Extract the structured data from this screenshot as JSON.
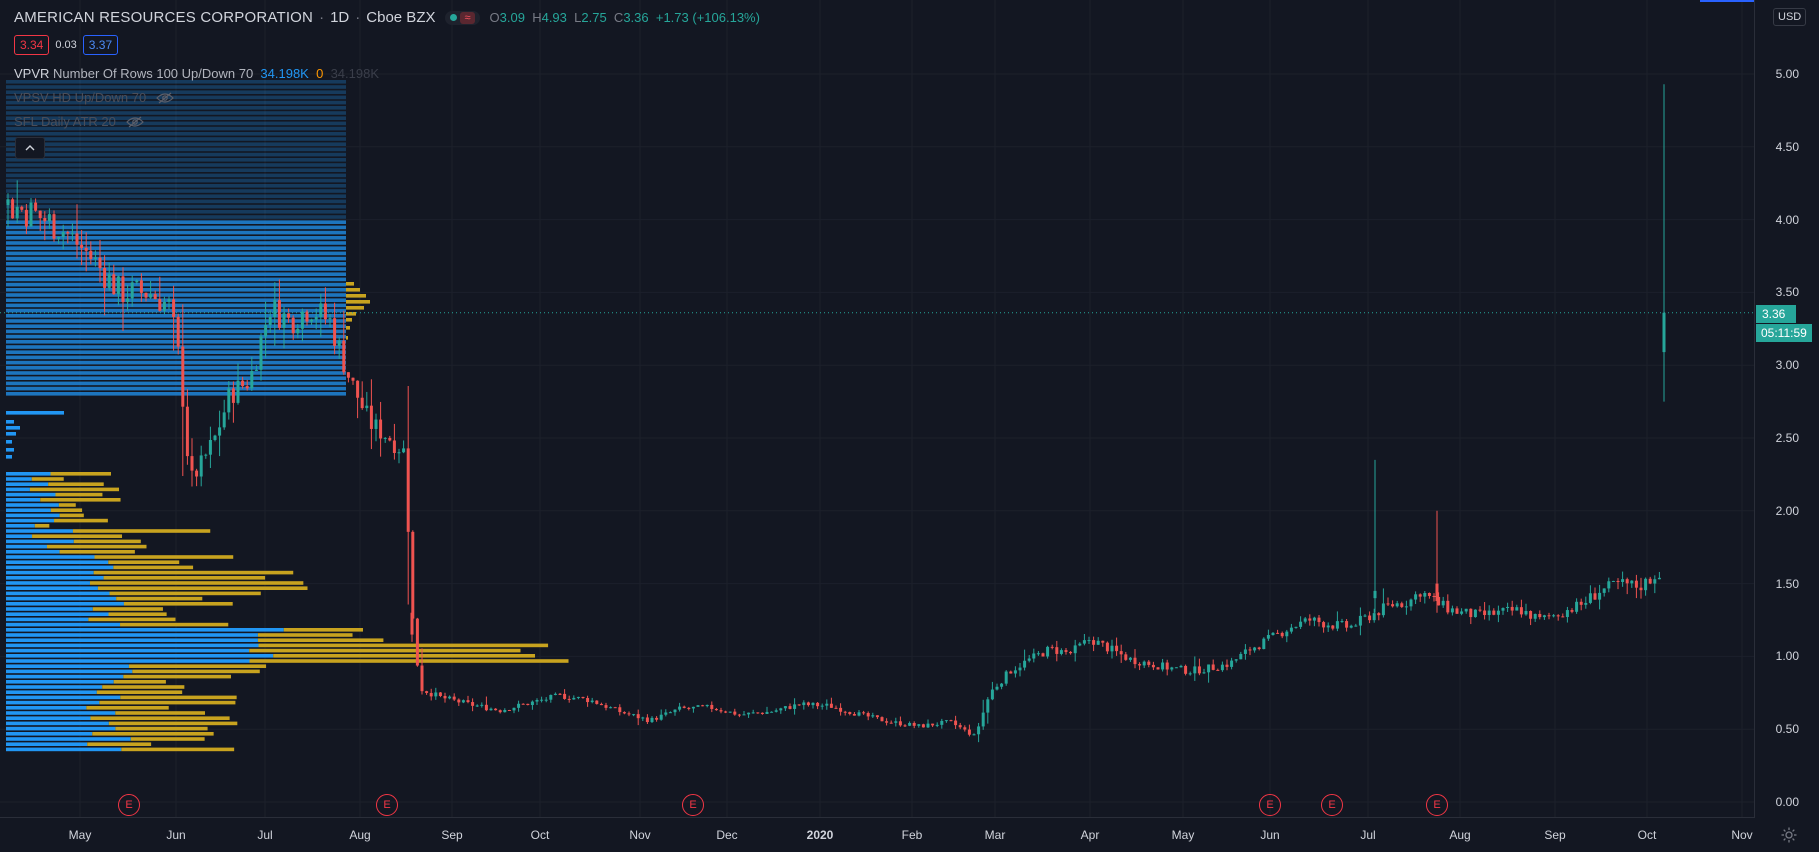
{
  "legend": {
    "symbol": "AMERICAN RESOURCES CORPORATION",
    "interval": "1D",
    "exchange": "Cboe BZX",
    "status_icon": "≈",
    "ohlc": {
      "o_label": "O",
      "o": "3.09",
      "h_label": "H",
      "h": "4.93",
      "l_label": "L",
      "l": "2.75",
      "c_label": "C",
      "c": "3.36",
      "change": "+1.73 (+106.13%)"
    }
  },
  "price_boxes": {
    "bid": "3.34",
    "spread": "0.03",
    "ask": "3.37"
  },
  "indicators": {
    "vpvr_name": "VPVR",
    "vpvr_params": "Number Of Rows 100 Up/Down 70",
    "vpvr_up": "34.198K",
    "vpvr_down": "0",
    "vpvr_total": "34.198K",
    "vpsv": "VPSV HD Up/Down 70",
    "atr": "SFL Daily ATR 20",
    "hidden_icon": "eye-crossed-icon"
  },
  "currency_button": "USD",
  "last_price": "3.36",
  "countdown": "05:11:59",
  "price_axis": {
    "ticks": [
      "5.00",
      "4.50",
      "4.00",
      "3.50",
      "3.00",
      "2.50",
      "2.00",
      "1.50",
      "1.00",
      "0.50",
      "0.00"
    ],
    "values": [
      5.0,
      4.5,
      4.0,
      3.5,
      3.0,
      2.5,
      2.0,
      1.5,
      1.0,
      0.5,
      0.0
    ]
  },
  "time_axis": {
    "labels": [
      "May",
      "Jun",
      "Jul",
      "Aug",
      "Sep",
      "Oct",
      "Nov",
      "Dec",
      "2020",
      "Feb",
      "Mar",
      "Apr",
      "May",
      "Jun",
      "Jul",
      "Aug",
      "Sep",
      "Oct",
      "Nov"
    ]
  },
  "earnings_label": "E",
  "colors": {
    "background": "#131722",
    "up": "#26a69a",
    "down": "#ef5350",
    "volume_up": "#2196f3",
    "volume_down": "#c8a31f",
    "accent": "#2962ff"
  }
}
